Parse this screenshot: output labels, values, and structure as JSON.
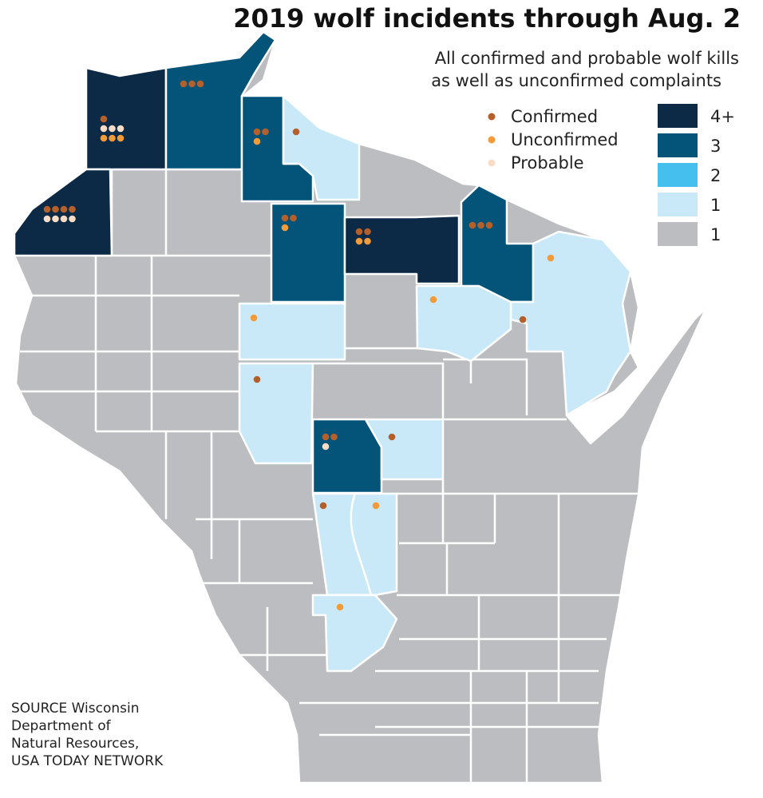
{
  "title": "2019 wolf incidents through Aug. 2",
  "subtitle": [
    "All confirmed and probable wolf kills",
    "as well as unconfirmed complaints"
  ],
  "legend_types": [
    {
      "label": "Confirmed",
      "color": "#b5602a"
    },
    {
      "label": "Unconfirmed",
      "color": "#f29b38"
    },
    {
      "label": "Probable",
      "color": "#f9dcc6"
    }
  ],
  "legend_levels": [
    {
      "label": "4+",
      "color": "#0c2a45"
    },
    {
      "label": "3",
      "color": "#045479"
    },
    {
      "label": "2",
      "color": "#44bfee"
    },
    {
      "label": "1",
      "color": "#c9e9f8"
    },
    {
      "label": "1",
      "color": "#bcbdc0"
    }
  ],
  "source": [
    "SOURCE Wisconsin",
    "Department of",
    "Natural Resources,",
    "USA TODAY NETWORK"
  ],
  "incidents": [
    {
      "confirmed": 1,
      "probable": 3,
      "unconfirmed": 3
    },
    {
      "confirmed": 3,
      "probable": 0,
      "unconfirmed": 0
    },
    {
      "confirmed": 2,
      "probable": 0,
      "unconfirmed": 1
    },
    {
      "confirmed": 1,
      "probable": 0,
      "unconfirmed": 0
    },
    {
      "confirmed": 4,
      "probable": 4,
      "unconfirmed": 0
    },
    {
      "confirmed": 2,
      "probable": 0,
      "unconfirmed": 1
    },
    {
      "confirmed": 2,
      "probable": 0,
      "unconfirmed": 2
    },
    {
      "confirmed": 3,
      "probable": 0,
      "unconfirmed": 0
    },
    {
      "confirmed": 0,
      "probable": 0,
      "unconfirmed": 1
    },
    {
      "confirmed": 0,
      "probable": 0,
      "unconfirmed": 1
    },
    {
      "confirmed": 1,
      "probable": 0,
      "unconfirmed": 0
    },
    {
      "confirmed": 0,
      "probable": 0,
      "unconfirmed": 1
    },
    {
      "confirmed": 1,
      "probable": 0,
      "unconfirmed": 0
    },
    {
      "confirmed": 2,
      "probable": 1,
      "unconfirmed": 0
    },
    {
      "confirmed": 1,
      "probable": 0,
      "unconfirmed": 0
    },
    {
      "confirmed": 1,
      "probable": 0,
      "unconfirmed": 0
    },
    {
      "confirmed": 0,
      "probable": 0,
      "unconfirmed": 1
    },
    {
      "confirmed": 0,
      "probable": 0,
      "unconfirmed": 1
    }
  ]
}
